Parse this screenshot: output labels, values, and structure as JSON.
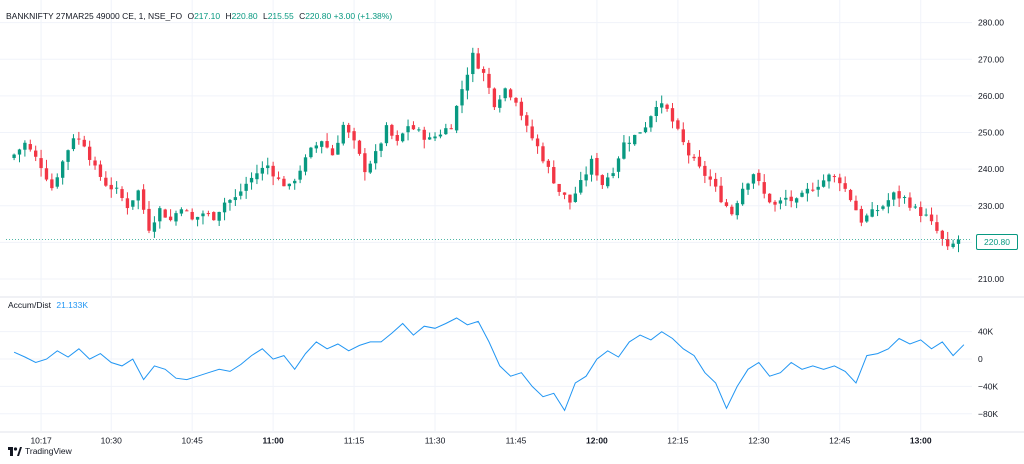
{
  "legend": {
    "symbol": "BANKNIFTY 27MAR25 49000 CE, 1, NSE_FO",
    "open_label": "O",
    "open": "217.10",
    "high_label": "H",
    "high": "220.80",
    "low_label": "L",
    "low": "215.55",
    "close_label": "C",
    "close": "220.80",
    "change": "+3.00 (+1.38%)"
  },
  "indicator": {
    "label": "Accum/Dist",
    "value": "21.133K"
  },
  "last_price_tag": "220.80",
  "branding": "TradingView",
  "colors": {
    "up": "#089981",
    "down": "#f23645",
    "line": "#2196f3",
    "grid": "#f0f3fa"
  },
  "chart_data": [
    {
      "type": "candlestick",
      "title": "BANKNIFTY 27MAR25 49000 CE, 1, NSE_FO",
      "x_ticks": [
        {
          "label": "10:17",
          "bold": false
        },
        {
          "label": "10:30",
          "bold": false
        },
        {
          "label": "10:45",
          "bold": false
        },
        {
          "label": "11:00",
          "bold": true
        },
        {
          "label": "11:15",
          "bold": false
        },
        {
          "label": "11:30",
          "bold": false
        },
        {
          "label": "11:45",
          "bold": false
        },
        {
          "label": "12:00",
          "bold": true
        },
        {
          "label": "12:15",
          "bold": false
        },
        {
          "label": "12:30",
          "bold": false
        },
        {
          "label": "12:45",
          "bold": false
        },
        {
          "label": "13:00",
          "bold": true
        }
      ],
      "y_ticks": [
        "210.00",
        "220.00",
        "230.00",
        "240.00",
        "250.00",
        "260.00",
        "270.00",
        "280.00"
      ],
      "ylim": [
        207,
        284
      ],
      "close_path": [
        [
          "10:12",
          244
        ],
        [
          "10:14",
          247
        ],
        [
          "10:17",
          241
        ],
        [
          "10:19",
          235
        ],
        [
          "10:21",
          242
        ],
        [
          "10:23",
          249
        ],
        [
          "10:25",
          247
        ],
        [
          "10:27",
          240
        ],
        [
          "10:29",
          236
        ],
        [
          "10:31",
          234
        ],
        [
          "10:33",
          230
        ],
        [
          "10:35",
          234
        ],
        [
          "10:37",
          224
        ],
        [
          "10:39",
          229
        ],
        [
          "10:41",
          226
        ],
        [
          "10:43",
          230
        ],
        [
          "10:45",
          226
        ],
        [
          "10:47",
          228
        ],
        [
          "10:49",
          227
        ],
        [
          "10:51",
          231
        ],
        [
          "10:53",
          232
        ],
        [
          "10:55",
          236
        ],
        [
          "10:57",
          239
        ],
        [
          "10:59",
          241
        ],
        [
          "11:01",
          237
        ],
        [
          "11:03",
          235
        ],
        [
          "11:05",
          240
        ],
        [
          "11:07",
          245
        ],
        [
          "11:09",
          248
        ],
        [
          "11:11",
          244
        ],
        [
          "11:13",
          252
        ],
        [
          "11:15",
          247
        ],
        [
          "11:17",
          240
        ],
        [
          "11:19",
          244
        ],
        [
          "11:21",
          251
        ],
        [
          "11:23",
          247
        ],
        [
          "11:25",
          252
        ],
        [
          "11:27",
          250
        ],
        [
          "11:29",
          248
        ],
        [
          "11:31",
          250
        ],
        [
          "11:33",
          252
        ],
        [
          "11:35",
          262
        ],
        [
          "11:37",
          271
        ],
        [
          "11:39",
          266
        ],
        [
          "11:41",
          258
        ],
        [
          "11:43",
          262
        ],
        [
          "11:45",
          259
        ],
        [
          "11:47",
          251
        ],
        [
          "11:49",
          246
        ],
        [
          "11:51",
          240
        ],
        [
          "11:53",
          234
        ],
        [
          "11:55",
          231
        ],
        [
          "11:57",
          236
        ],
        [
          "11:59",
          242
        ],
        [
          "12:01",
          236
        ],
        [
          "12:03",
          240
        ],
        [
          "12:05",
          247
        ],
        [
          "12:07",
          249
        ],
        [
          "12:09",
          252
        ],
        [
          "12:11",
          258
        ],
        [
          "12:13",
          256
        ],
        [
          "12:15",
          250
        ],
        [
          "12:17",
          244
        ],
        [
          "12:19",
          240
        ],
        [
          "12:21",
          237
        ],
        [
          "12:23",
          232
        ],
        [
          "12:25",
          228
        ],
        [
          "12:27",
          235
        ],
        [
          "12:29",
          239
        ],
        [
          "12:31",
          233
        ],
        [
          "12:33",
          230
        ],
        [
          "12:35",
          232
        ],
        [
          "12:37",
          231
        ],
        [
          "12:39",
          234
        ],
        [
          "12:41",
          236
        ],
        [
          "12:43",
          238
        ],
        [
          "12:45",
          237
        ],
        [
          "12:47",
          232
        ],
        [
          "12:49",
          226
        ],
        [
          "12:51",
          228
        ],
        [
          "12:53",
          230
        ],
        [
          "12:55",
          233
        ],
        [
          "12:57",
          232
        ],
        [
          "12:59",
          229
        ],
        [
          "13:01",
          227
        ],
        [
          "13:03",
          223
        ],
        [
          "13:05",
          218
        ],
        [
          "13:07",
          220.8
        ]
      ]
    },
    {
      "type": "line",
      "title": "Accum/Dist",
      "y_ticks": [
        "40K",
        "0",
        "−40K",
        "−80K"
      ],
      "ylim": [
        -92,
        60
      ],
      "path": [
        [
          "10:12",
          10
        ],
        [
          "10:14",
          3
        ],
        [
          "10:16",
          -5
        ],
        [
          "10:18",
          0
        ],
        [
          "10:20",
          12
        ],
        [
          "10:22",
          3
        ],
        [
          "10:24",
          15
        ],
        [
          "10:26",
          0
        ],
        [
          "10:28",
          8
        ],
        [
          "10:30",
          -5
        ],
        [
          "10:32",
          -10
        ],
        [
          "10:34",
          0
        ],
        [
          "10:36",
          -30
        ],
        [
          "10:38",
          -10
        ],
        [
          "10:40",
          -15
        ],
        [
          "10:42",
          -28
        ],
        [
          "10:44",
          -30
        ],
        [
          "10:46",
          -25
        ],
        [
          "10:48",
          -20
        ],
        [
          "10:50",
          -15
        ],
        [
          "10:52",
          -18
        ],
        [
          "10:54",
          -8
        ],
        [
          "10:56",
          5
        ],
        [
          "10:58",
          15
        ],
        [
          "11:00",
          0
        ],
        [
          "11:02",
          5
        ],
        [
          "11:04",
          -15
        ],
        [
          "11:06",
          8
        ],
        [
          "11:08",
          25
        ],
        [
          "11:10",
          15
        ],
        [
          "11:12",
          22
        ],
        [
          "11:14",
          12
        ],
        [
          "11:16",
          20
        ],
        [
          "11:18",
          25
        ],
        [
          "11:20",
          25
        ],
        [
          "11:22",
          38
        ],
        [
          "11:24",
          52
        ],
        [
          "11:26",
          35
        ],
        [
          "11:28",
          48
        ],
        [
          "11:30",
          45
        ],
        [
          "11:32",
          52
        ],
        [
          "11:34",
          60
        ],
        [
          "11:36",
          50
        ],
        [
          "11:38",
          55
        ],
        [
          "11:40",
          25
        ],
        [
          "11:42",
          -10
        ],
        [
          "11:44",
          -25
        ],
        [
          "11:46",
          -20
        ],
        [
          "11:48",
          -40
        ],
        [
          "11:50",
          -55
        ],
        [
          "11:52",
          -50
        ],
        [
          "11:54",
          -75
        ],
        [
          "11:56",
          -35
        ],
        [
          "11:58",
          -25
        ],
        [
          "12:00",
          0
        ],
        [
          "12:02",
          12
        ],
        [
          "12:04",
          3
        ],
        [
          "12:06",
          25
        ],
        [
          "12:08",
          35
        ],
        [
          "12:10",
          28
        ],
        [
          "12:12",
          40
        ],
        [
          "12:14",
          30
        ],
        [
          "12:16",
          15
        ],
        [
          "12:18",
          5
        ],
        [
          "12:20",
          -20
        ],
        [
          "12:22",
          -35
        ],
        [
          "12:24",
          -72
        ],
        [
          "12:26",
          -40
        ],
        [
          "12:28",
          -15
        ],
        [
          "12:30",
          -5
        ],
        [
          "12:32",
          -25
        ],
        [
          "12:34",
          -20
        ],
        [
          "12:36",
          -5
        ],
        [
          "12:38",
          -15
        ],
        [
          "12:40",
          -10
        ],
        [
          "12:42",
          -15
        ],
        [
          "12:44",
          -10
        ],
        [
          "12:46",
          -18
        ],
        [
          "12:48",
          -35
        ],
        [
          "12:50",
          5
        ],
        [
          "12:52",
          8
        ],
        [
          "12:54",
          15
        ],
        [
          "12:56",
          30
        ],
        [
          "12:58",
          22
        ],
        [
          "13:00",
          28
        ],
        [
          "13:02",
          15
        ],
        [
          "13:04",
          25
        ],
        [
          "13:06",
          5
        ],
        [
          "13:08",
          21
        ]
      ]
    }
  ]
}
